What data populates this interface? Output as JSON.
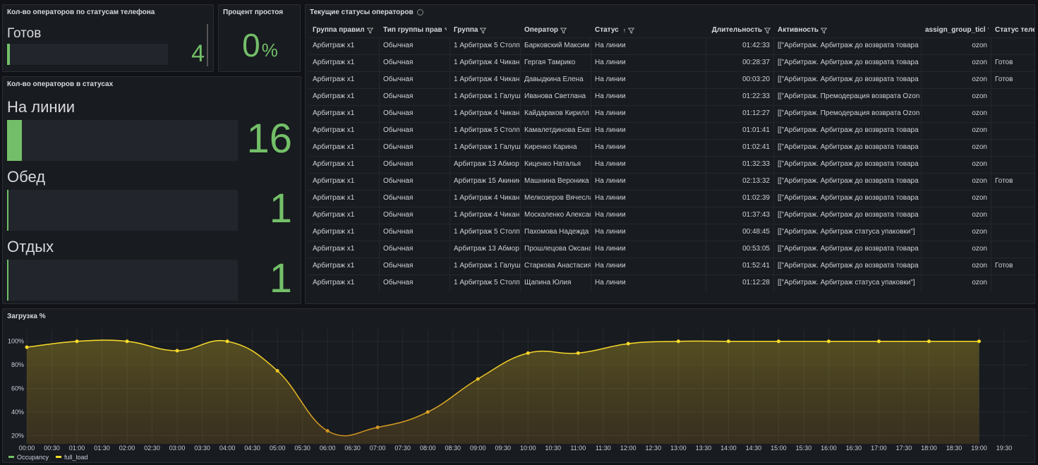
{
  "phone_status_panel": {
    "title": "Кол-во операторов по статусам телефона",
    "items": [
      {
        "label": "Готов",
        "value": 4
      }
    ]
  },
  "idle_panel": {
    "title": "Процент простоя",
    "value": 0,
    "unit": "%"
  },
  "status_panel": {
    "title": "Кол-во операторов в статусах",
    "items": [
      {
        "label": "На линии",
        "value": 16
      },
      {
        "label": "Обед",
        "value": 1
      },
      {
        "label": "Отдых",
        "value": 1
      }
    ]
  },
  "table": {
    "title": "Текущие статусы операторов",
    "columns": [
      "Группа правил",
      "Тип группы прав",
      "Группа",
      "Оператор",
      "Статус",
      "Длительность",
      "Активность",
      "assign_group_ticl",
      "Статус теле"
    ],
    "rows": [
      [
        "Арбитраж х1",
        "Обычная",
        "1 Арбитраж 5 Столп",
        "Барковский Максим",
        "На линии",
        "01:42:33",
        "[[\"Арбитраж. Арбитраж до возврата товара",
        "ozon",
        null
      ],
      [
        "Арбитраж х1",
        "Обычная",
        "1 Арбитраж 4 Чикан",
        "Гергая Тамрико",
        "На линии",
        "00:28:37",
        "[[\"Арбитраж. Арбитраж до возврата товара",
        "ozon",
        "Готов"
      ],
      [
        "Арбитраж х1",
        "Обычная",
        "1 Арбитраж 4 Чикан",
        "Давыдкина Елена",
        "На линии",
        "00:03:20",
        "[[\"Арбитраж. Арбитраж до возврата товара",
        "ozon",
        "Готов"
      ],
      [
        "Арбитраж х1",
        "Обычная",
        "1 Арбитраж 1 Галуш",
        "Иванова Светлана",
        "На линии",
        "01:22:33",
        "[[\"Арбитраж. Премодерация возврата Ozon",
        "ozon",
        null
      ],
      [
        "Арбитраж х1",
        "Обычная",
        "1 Арбитраж 4 Чикан",
        "Кайдараков Кирилл",
        "На линии",
        "01:12:27",
        "[[\"Арбитраж. Премодерация возврата Ozon",
        "ozon",
        null
      ],
      [
        "Арбитраж х1",
        "Обычная",
        "1 Арбитраж 5 Столп",
        "Камалетдинова Екат",
        "На линии",
        "01:01:41",
        "[[\"Арбитраж. Арбитраж до возврата товара",
        "ozon",
        null
      ],
      [
        "Арбитраж х1",
        "Обычная",
        "1 Арбитраж 1 Галуш",
        "Киренко Карина",
        "На линии",
        "01:02:41",
        "[[\"Арбитраж. Арбитраж до возврата товара",
        "ozon",
        null
      ],
      [
        "Арбитраж х1",
        "Обычная",
        "Арбитраж 13 Абмор",
        "Киценко Наталья",
        "На линии",
        "01:32:33",
        "[[\"Арбитраж. Арбитраж до возврата товара",
        "ozon",
        null
      ],
      [
        "Арбитраж х1",
        "Обычная",
        "Арбитраж 15 Акинин",
        "Машнина Вероника",
        "На линии",
        "02:13:32",
        "[[\"Арбитраж. Арбитраж до возврата товара",
        "ozon",
        "Готов"
      ],
      [
        "Арбитраж х1",
        "Обычная",
        "1 Арбитраж 4 Чикан",
        "Мелкозеров Вячесла",
        "На линии",
        "01:02:39",
        "[[\"Арбитраж. Арбитраж до возврата товара",
        "ozon",
        null
      ],
      [
        "Арбитраж х1",
        "Обычная",
        "1 Арбитраж 4 Чикан",
        "Москаленко Алексан",
        "На линии",
        "01:37:43",
        "[[\"Арбитраж. Арбитраж до возврата товара",
        "ozon",
        null
      ],
      [
        "Арбитраж х1",
        "Обычная",
        "1 Арбитраж 5 Столп",
        "Пахомова Надежда",
        "На линии",
        "00:48:45",
        "[[\"Арбитраж. Арбитраж статуса упаковки\"]",
        "ozon",
        null
      ],
      [
        "Арбитраж х1",
        "Обычная",
        "Арбитраж 13 Абмор",
        "Прошлецова Оксана",
        "На линии",
        "00:53:05",
        "[[\"Арбитраж. Арбитраж до возврата товара",
        "ozon",
        null
      ],
      [
        "Арбитраж х1",
        "Обычная",
        "1 Арбитраж 1 Галуш",
        "Старкова Анастасия",
        "На линии",
        "01:52:41",
        "[[\"Арбитраж. Арбитраж до возврата товара",
        "ozon",
        "Готов"
      ],
      [
        "Арбитраж х1",
        "Обычная",
        "1 Арбитраж 5 Столп",
        "Щапина Юлия",
        "На линии",
        "01:12:28",
        "[[\"Арбитраж. Арбитраж статуса упаковки\"]",
        "ozon",
        null
      ]
    ]
  },
  "chart_data": {
    "type": "line",
    "title": "Загрузка %",
    "x": [
      0,
      1,
      2,
      3,
      4,
      5,
      6,
      7,
      8,
      9,
      10,
      11,
      12,
      13,
      14,
      15,
      16,
      17,
      18,
      19
    ],
    "series": [
      {
        "name": "full_load",
        "color": "#fade2a",
        "values": [
          95,
          100,
          100,
          92,
          100,
          75,
          24,
          27,
          40,
          68,
          90,
          90,
          98,
          100,
          100,
          100,
          100,
          100,
          100,
          100
        ]
      }
    ],
    "extra_legend": [
      {
        "name": "Occupancy",
        "color": "#73bf69"
      }
    ],
    "gradient_low_color": "#c98a1f",
    "xlim": [
      0,
      19.5
    ],
    "xticks": [
      {
        "value": 0,
        "label": "00:00"
      },
      {
        "value": 0.5,
        "label": "00:30"
      },
      {
        "value": 1,
        "label": "01:00"
      },
      {
        "value": 1.5,
        "label": "01:30"
      },
      {
        "value": 2,
        "label": "02:00"
      },
      {
        "value": 2.5,
        "label": "02:30"
      },
      {
        "value": 3,
        "label": "03:00"
      },
      {
        "value": 3.5,
        "label": "03:30"
      },
      {
        "value": 4,
        "label": "04:00"
      },
      {
        "value": 4.5,
        "label": "04:30"
      },
      {
        "value": 5,
        "label": "05:00"
      },
      {
        "value": 5.5,
        "label": "05:30"
      },
      {
        "value": 6,
        "label": "06:00"
      },
      {
        "value": 6.5,
        "label": "06:30"
      },
      {
        "value": 7,
        "label": "07:00"
      },
      {
        "value": 7.5,
        "label": "07:30"
      },
      {
        "value": 8,
        "label": "08:00"
      },
      {
        "value": 8.5,
        "label": "08:30"
      },
      {
        "value": 9,
        "label": "09:00"
      },
      {
        "value": 9.5,
        "label": "09:30"
      },
      {
        "value": 10,
        "label": "10:00"
      },
      {
        "value": 10.5,
        "label": "10:30"
      },
      {
        "value": 11,
        "label": "11:00"
      },
      {
        "value": 11.5,
        "label": "11:30"
      },
      {
        "value": 12,
        "label": "12:00"
      },
      {
        "value": 12.5,
        "label": "12:30"
      },
      {
        "value": 13,
        "label": "13:00"
      },
      {
        "value": 13.5,
        "label": "13:30"
      },
      {
        "value": 14,
        "label": "14:00"
      },
      {
        "value": 14.5,
        "label": "14:30"
      },
      {
        "value": 15,
        "label": "15:00"
      },
      {
        "value": 15.5,
        "label": "15:30"
      },
      {
        "value": 16,
        "label": "16:00"
      },
      {
        "value": 16.5,
        "label": "16:30"
      },
      {
        "value": 17,
        "label": "17:00"
      },
      {
        "value": 17.5,
        "label": "17:30"
      },
      {
        "value": 18,
        "label": "18:00"
      },
      {
        "value": 18.5,
        "label": "18:30"
      },
      {
        "value": 19,
        "label": "19:00"
      },
      {
        "value": 19.5,
        "label": "19:30"
      }
    ],
    "ylim": [
      13,
      110
    ],
    "yticks": [
      {
        "value": 20,
        "label": "20%"
      },
      {
        "value": 40,
        "label": "40%"
      },
      {
        "value": 60,
        "label": "60%"
      },
      {
        "value": 80,
        "label": "80%"
      },
      {
        "value": 100,
        "label": "100%"
      }
    ],
    "grid": true
  }
}
